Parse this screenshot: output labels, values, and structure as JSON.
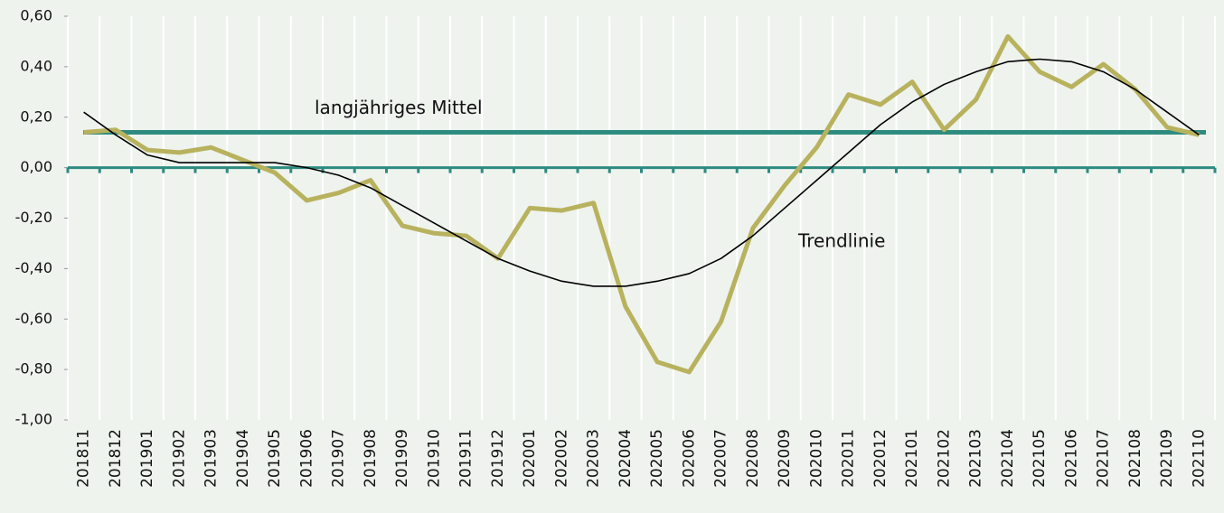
{
  "chart_data": {
    "type": "line",
    "categories": [
      "201811",
      "201812",
      "201901",
      "201902",
      "201903",
      "201904",
      "201905",
      "201906",
      "201907",
      "201908",
      "201909",
      "201910",
      "201911",
      "201912",
      "202001",
      "202002",
      "202003",
      "202004",
      "202005",
      "202006",
      "202007",
      "202008",
      "202009",
      "202010",
      "202011",
      "202012",
      "202101",
      "202102",
      "202103",
      "202104",
      "202105",
      "202106",
      "202107",
      "202108",
      "202109",
      "202110"
    ],
    "series": [
      {
        "color": "#b8b25e",
        "values": [
          0.14,
          0.15,
          0.07,
          0.06,
          0.08,
          0.03,
          -0.02,
          -0.13,
          -0.1,
          -0.05,
          -0.23,
          -0.26,
          -0.27,
          -0.36,
          -0.16,
          -0.17,
          -0.14,
          -0.55,
          -0.77,
          -0.81,
          -0.61,
          -0.24,
          -0.07,
          0.08,
          0.29,
          0.25,
          0.34,
          0.15,
          0.27,
          0.52,
          0.38,
          0.32,
          0.41,
          0.31,
          0.16,
          0.13
        ]
      },
      {
        "name": "Trendlinie",
        "color": "#000000",
        "values": [
          0.22,
          0.13,
          0.05,
          0.02,
          0.02,
          0.02,
          0.02,
          0.0,
          -0.03,
          -0.08,
          -0.15,
          -0.22,
          -0.29,
          -0.36,
          -0.41,
          -0.45,
          -0.47,
          -0.47,
          -0.45,
          -0.42,
          -0.36,
          -0.27,
          -0.16,
          -0.05,
          0.06,
          0.17,
          0.26,
          0.33,
          0.38,
          0.42,
          0.43,
          0.42,
          0.38,
          0.31,
          0.22,
          0.13
        ]
      }
    ],
    "reference_lines": [
      {
        "label": "langjähriges Mittel",
        "value": 0.14,
        "color": "#2e8b80"
      }
    ],
    "axis_color": "#2e8b80",
    "ylim": [
      -1.0,
      0.6
    ],
    "yticks": [
      {
        "value": -1.0,
        "label": "-1,00"
      },
      {
        "value": -0.8,
        "label": "-0,80"
      },
      {
        "value": -0.6,
        "label": "-0,60"
      },
      {
        "value": -0.4,
        "label": "-0,40"
      },
      {
        "value": -0.2,
        "label": "-0,20"
      },
      {
        "value": 0,
        "label": "0,00"
      },
      {
        "value": 0.2,
        "label": "0,20"
      },
      {
        "value": 0.4,
        "label": "0,40"
      },
      {
        "value": 0.6,
        "label": "0,60"
      }
    ],
    "grid": true
  }
}
